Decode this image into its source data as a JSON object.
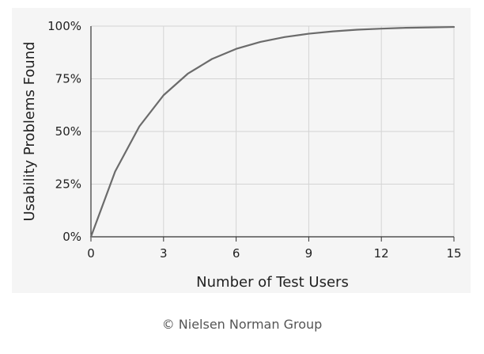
{
  "chart_data": {
    "type": "line",
    "xlabel": "Number of Test Users",
    "ylabel": "Usability Problems Found",
    "xlim": [
      0,
      15
    ],
    "ylim": [
      0,
      100
    ],
    "x_ticks": [
      "0",
      "3",
      "6",
      "9",
      "12",
      "15"
    ],
    "y_ticks": [
      "0%",
      "25%",
      "50%",
      "75%",
      "100%"
    ],
    "grid": true,
    "series": [
      {
        "x": [
          0,
          1,
          2,
          3,
          4,
          5,
          6,
          7,
          8,
          9,
          10,
          11,
          12,
          13,
          14,
          15
        ],
        "y": [
          0,
          31,
          52.4,
          67.2,
          77.4,
          84.4,
          89.2,
          92.5,
          94.8,
          96.4,
          97.5,
          98.3,
          98.8,
          99.2,
          99.4,
          99.6
        ]
      }
    ],
    "colors": {
      "line": "#6b6b6b",
      "grid": "#d4d4d4",
      "axis": "#333333",
      "background": "#f5f5f5"
    }
  },
  "footer": {
    "copyright": "© Nielsen Norman Group"
  }
}
